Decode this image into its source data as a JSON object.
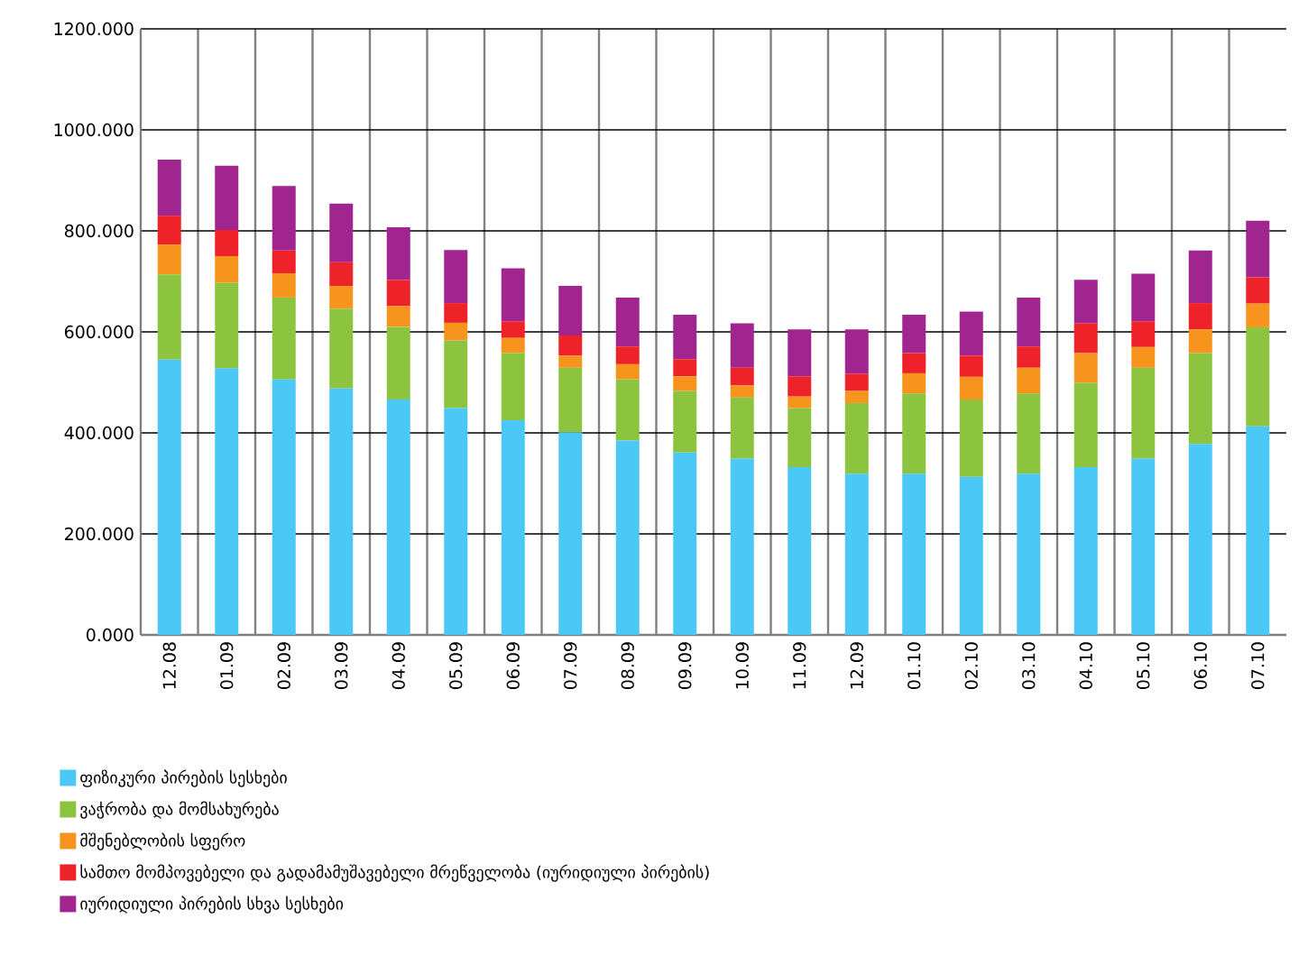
{
  "chart_data": {
    "type": "bar",
    "stacked": true,
    "grid": true,
    "legend": "bottom",
    "categories": [
      "12.08",
      "01.09",
      "02.09",
      "03.09",
      "04.09",
      "05.09",
      "06.09",
      "07.09",
      "08.09",
      "09.09",
      "10.09",
      "11.09",
      "12.09",
      "01.10",
      "02.10",
      "03.10",
      "04.10",
      "05.10",
      "06.10",
      "07.10"
    ],
    "ylim": [
      0,
      1200
    ],
    "yticks": [
      {
        "value": 0,
        "label": "0.000"
      },
      {
        "value": 200,
        "label": "200.000"
      },
      {
        "value": 400,
        "label": "400.000"
      },
      {
        "value": 600,
        "label": "600.000"
      },
      {
        "value": 800,
        "label": "800.000"
      },
      {
        "value": 1000,
        "label": "1000.000"
      },
      {
        "value": 1200,
        "label": "1200.000"
      }
    ],
    "series": [
      {
        "name": "ფიზიკური პირების სესხები",
        "color": "#4bc8f5",
        "values": [
          545,
          528,
          506,
          488,
          466,
          449,
          425,
          401,
          385,
          361,
          349,
          332,
          319,
          319,
          313,
          319,
          332,
          349,
          378,
          413
        ]
      },
      {
        "name": "ვაჭრობა და მომსახურება",
        "color": "#8dc43f",
        "values": [
          169,
          169,
          162,
          158,
          144,
          134,
          133,
          128,
          121,
          122,
          121,
          117,
          140,
          159,
          153,
          159,
          167,
          180,
          180,
          196
        ]
      },
      {
        "name": "მშენებლობის სფერო",
        "color": "#f7941d",
        "values": [
          59,
          53,
          48,
          45,
          41,
          35,
          30,
          24,
          30,
          29,
          24,
          23,
          24,
          40,
          45,
          51,
          59,
          41,
          47,
          47
        ]
      },
      {
        "name": "სამთო მომპოვებელი და გადამამუშავებელი მრეწველობა (იურიდიული პირების)",
        "color": "#ee2229",
        "values": [
          57,
          52,
          45,
          47,
          52,
          39,
          33,
          40,
          35,
          34,
          35,
          40,
          34,
          40,
          42,
          42,
          59,
          51,
          52,
          52
        ]
      },
      {
        "name": "იურიდიული პირების სხვა სესხები",
        "color": "#a0258e",
        "values": [
          111,
          127,
          128,
          116,
          104,
          105,
          105,
          98,
          97,
          88,
          88,
          93,
          88,
          76,
          87,
          97,
          86,
          94,
          104,
          112
        ]
      }
    ]
  }
}
